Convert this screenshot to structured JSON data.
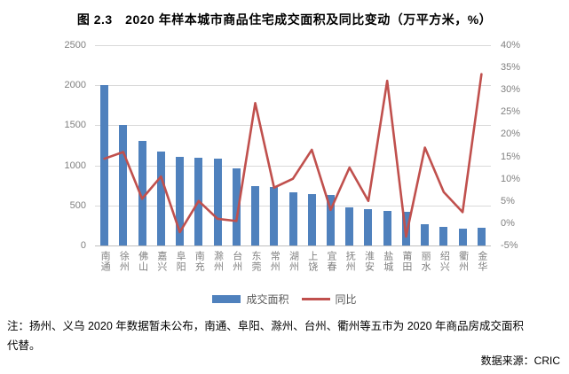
{
  "title": "图 2.3　2020 年样本城市商品住宅成交面积及同比变动（万平方米，%）",
  "chart_data": {
    "type": "bar+line combo",
    "title": "图 2.3　2020 年样本城市商品住宅成交面积及同比变动（万平方米，%）",
    "categories": [
      "南通",
      "徐州",
      "佛山",
      "嘉兴",
      "阜阳",
      "南充",
      "滁州",
      "台州",
      "东莞",
      "常州",
      "湖州",
      "上饶",
      "宜春",
      "抚州",
      "淮安",
      "盐城",
      "莆田",
      "丽水",
      "绍兴",
      "衢州",
      "金华"
    ],
    "series": [
      {
        "name": "成交面积",
        "type": "bar",
        "axis": "left",
        "color": "#4f81bd",
        "values": [
          2000,
          1500,
          1310,
          1170,
          1110,
          1095,
          1085,
          960,
          745,
          735,
          660,
          640,
          630,
          480,
          455,
          435,
          420,
          260,
          230,
          210,
          220
        ]
      },
      {
        "name": "同比",
        "type": "line",
        "axis": "right",
        "color": "#c0504d",
        "values": [
          14.5,
          16,
          5.5,
          10.5,
          -2,
          5,
          1,
          0.5,
          27,
          8,
          10,
          16.5,
          3,
          12.5,
          5,
          32,
          -3,
          17,
          7,
          2.5,
          33.5
        ]
      }
    ],
    "left_axis": {
      "min": 0,
      "max": 2500,
      "tick_step": 500,
      "tick_labels": [
        "0",
        "500",
        "1000",
        "1500",
        "2000",
        "2500"
      ]
    },
    "right_axis": {
      "min": -5,
      "max": 40,
      "tick_step": 5,
      "tick_labels": [
        "-5%",
        "0%",
        "5%",
        "10%",
        "15%",
        "20%",
        "25%",
        "30%",
        "35%",
        "40%"
      ]
    },
    "grid": true,
    "legend_position": "bottom"
  },
  "legend": {
    "bar_label": "成交面积",
    "line_label": "同比"
  },
  "note_line1": "注：扬州、义乌 2020 年数据暂未公布，南通、阜阳、滁州、台州、衢州等五市为 2020 年商品房成交面积",
  "note_line2": "代替。",
  "source": "数据来源：CRIC",
  "colors": {
    "bar": "#4f81bd",
    "line": "#c0504d",
    "grid": "#d9d9d9",
    "axis_text": "#808080"
  }
}
